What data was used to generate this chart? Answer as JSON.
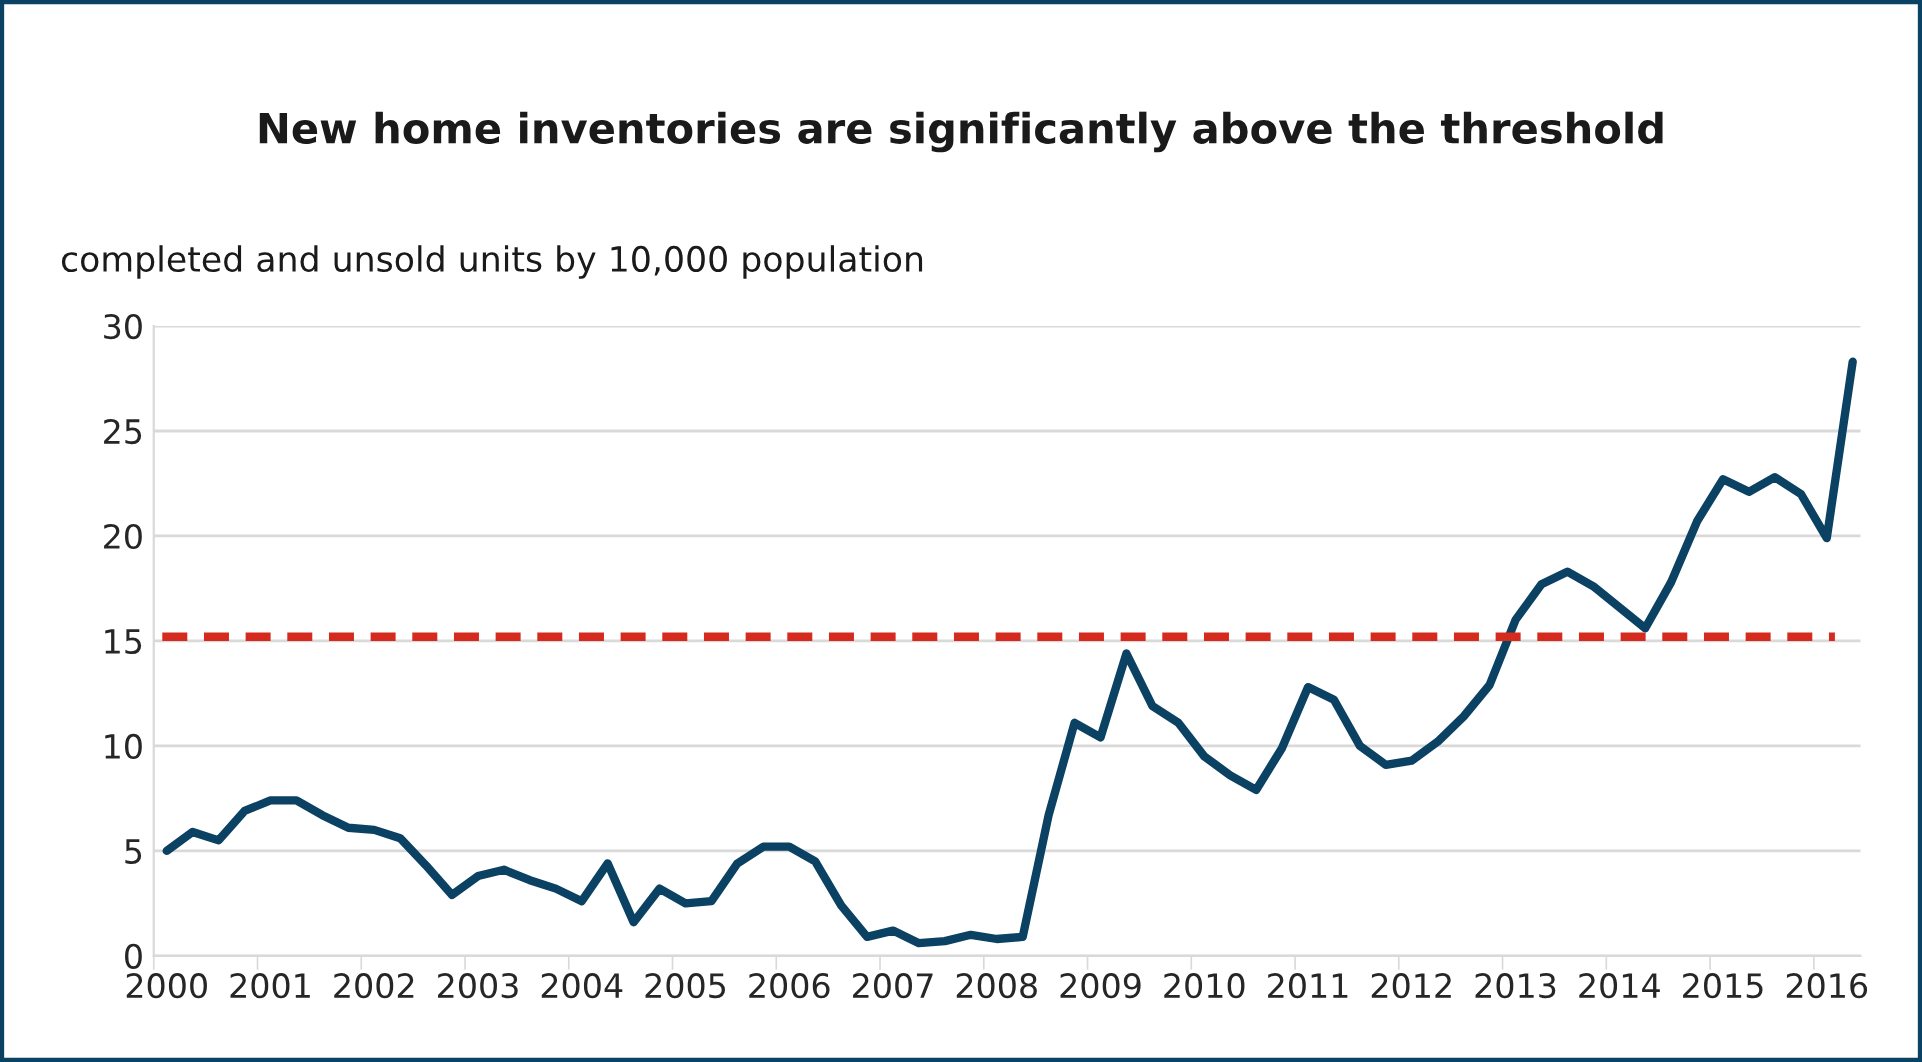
{
  "chart_data": {
    "type": "line",
    "title": "New home inventories are significantly above the threshold",
    "ylabel": "completed and unsold units by 10,000 population",
    "categories": [
      "2000",
      null,
      null,
      null,
      "2001",
      null,
      null,
      null,
      "2002",
      null,
      null,
      null,
      "2003",
      null,
      null,
      null,
      "2004",
      null,
      null,
      null,
      "2005",
      null,
      null,
      null,
      "2006",
      null,
      null,
      null,
      "2007",
      null,
      null,
      null,
      "2008",
      null,
      null,
      null,
      "2009",
      null,
      null,
      null,
      "2010",
      null,
      null,
      null,
      "2011",
      null,
      null,
      null,
      "2012",
      null,
      null,
      null,
      "2013",
      null,
      null,
      null,
      "2014",
      null,
      null,
      null,
      "2015",
      null,
      null,
      null,
      "2016",
      null
    ],
    "series": [
      {
        "color": "#0b4263",
        "values": [
          5.0,
          5.9,
          5.5,
          6.9,
          7.4,
          7.4,
          6.7,
          6.1,
          6.0,
          5.6,
          4.3,
          2.9,
          3.8,
          4.1,
          3.6,
          3.2,
          2.6,
          4.4,
          1.6,
          3.2,
          2.5,
          2.6,
          4.4,
          5.2,
          5.2,
          4.5,
          2.4,
          0.9,
          1.2,
          0.6,
          0.7,
          1.0,
          0.8,
          0.9,
          6.7,
          11.1,
          10.4,
          14.4,
          11.9,
          11.1,
          9.5,
          8.6,
          7.9,
          9.9,
          12.8,
          12.2,
          10.0,
          9.1,
          9.3,
          10.2,
          11.4,
          12.9,
          16.0,
          17.7,
          18.3,
          17.6,
          16.6,
          15.6,
          17.8,
          20.7,
          22.7,
          22.1,
          22.8,
          22.0,
          19.9,
          28.3
        ]
      }
    ],
    "ylim": [
      0,
      30
    ],
    "yticks": [
      0,
      5,
      10,
      15,
      20,
      25,
      30
    ],
    "grid": "y",
    "line_style": "solid",
    "ref_lines": [
      {
        "axis": "y",
        "value": 15.2,
        "color": "#d52b1e",
        "line_style": "dashed"
      }
    ]
  }
}
